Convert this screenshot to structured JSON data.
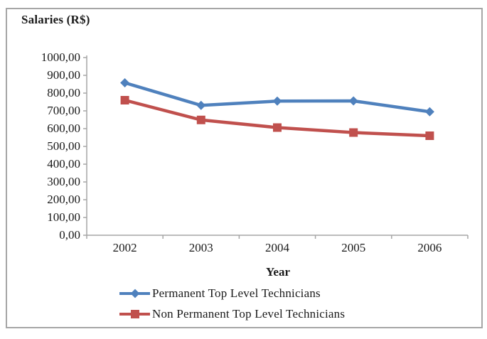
{
  "frame": {
    "border_color": "#a6a6a6",
    "background": "#ffffff"
  },
  "chart_data": {
    "type": "line",
    "title": "Salaries (R$)",
    "xlabel": "Year",
    "ylabel": "",
    "categories": [
      "2002",
      "2003",
      "2004",
      "2005",
      "2006"
    ],
    "series": [
      {
        "name": "Permanent Top Level Technicians",
        "color": "#4F81BD",
        "marker": "diamond",
        "values": [
          858,
          731,
          755,
          756,
          695
        ]
      },
      {
        "name": "Non Permanent Top Level Technicians",
        "color": "#C0504D",
        "marker": "square",
        "values": [
          760,
          649,
          606,
          578,
          560
        ]
      }
    ],
    "ylim": [
      0,
      1000
    ],
    "ytick_step": 100,
    "ytick_labels": [
      "0,00",
      "100,00",
      "200,00",
      "300,00",
      "400,00",
      "500,00",
      "600,00",
      "700,00",
      "800,00",
      "900,00",
      "1000,00"
    ],
    "grid": false,
    "legend_position": "bottom",
    "axis_color": "#a6a6a6"
  }
}
